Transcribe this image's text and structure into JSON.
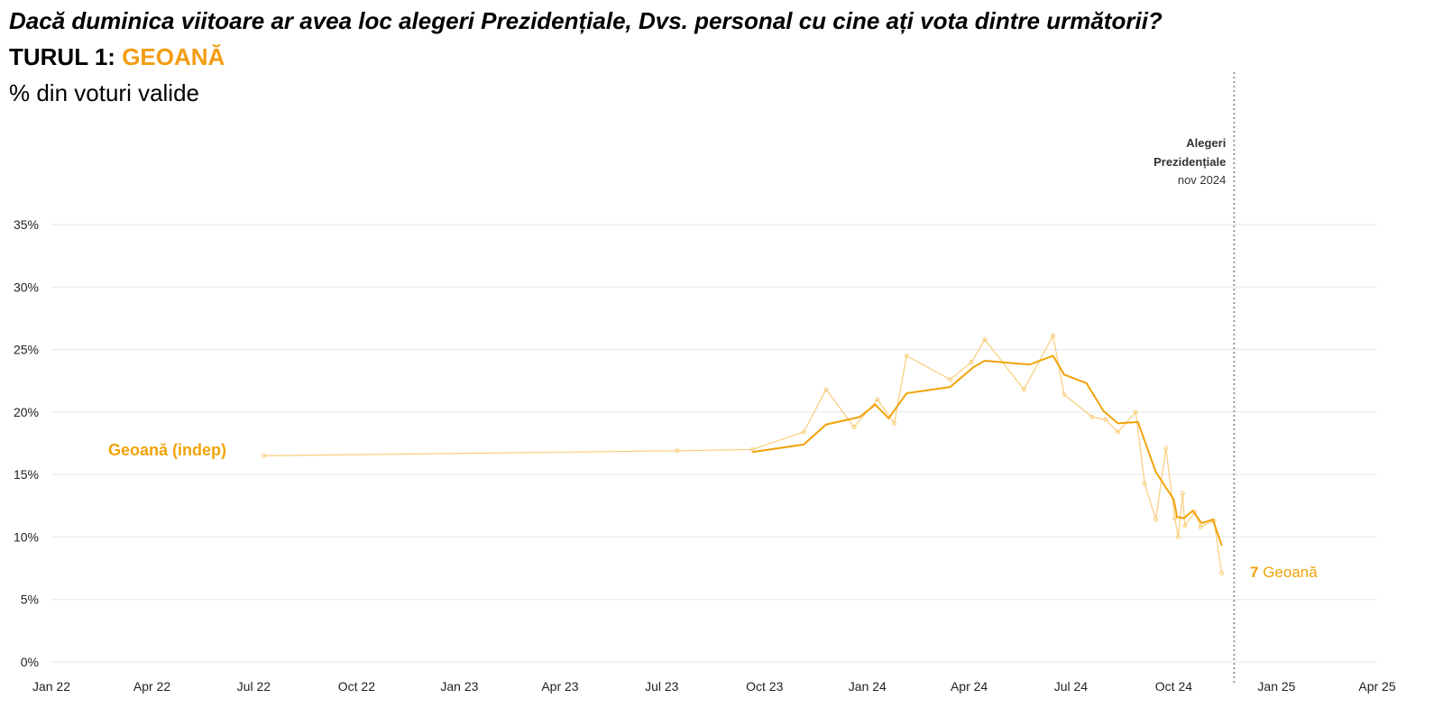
{
  "header": {
    "question": "Dacă duminica viitoare ar avea loc alegeri Prezidențiale, Dvs. personal cu cine ați vota dintre următorii?",
    "round_prefix": "TURUL 1:",
    "round_candidate": "GEOANĂ",
    "unit": "% din voturi valide"
  },
  "colors": {
    "series": "#f0a30a",
    "points": "#f8cd7a",
    "grid": "#e6e6e6",
    "event_line": "#999999"
  },
  "chart_data": {
    "type": "line",
    "title": "Dacă duminica viitoare ar avea loc alegeri Prezidențiale, Dvs. personal cu cine ați vota dintre următorii?",
    "ylabel": "% din voturi valide",
    "ylim": [
      0,
      35
    ],
    "yticks": [
      0,
      5,
      10,
      15,
      20,
      25,
      30,
      35
    ],
    "ytick_labels": [
      "0%",
      "5%",
      "10%",
      "15%",
      "20%",
      "25%",
      "30%",
      "35%"
    ],
    "xlim": [
      "2022-01-01",
      "2025-04-01"
    ],
    "xticks": [
      "2022-01-01",
      "2022-04-01",
      "2022-07-01",
      "2022-10-01",
      "2023-01-01",
      "2023-04-01",
      "2023-07-01",
      "2023-10-01",
      "2024-01-01",
      "2024-04-01",
      "2024-07-01",
      "2024-10-01",
      "2025-01-01",
      "2025-04-01"
    ],
    "xtick_labels": [
      "Jan 22",
      "Apr 22",
      "Jul 22",
      "Oct 22",
      "Jan 23",
      "Apr 23",
      "Jul 23",
      "Oct 23",
      "Jan 24",
      "Apr 24",
      "Jul 24",
      "Oct 24",
      "Jan 25",
      "Apr 25"
    ],
    "grid": true,
    "series_label": "Geoană (indep)",
    "end_label_number": "7",
    "end_label_name": "Geoană",
    "event": {
      "date": "2024-11-24",
      "label_line1": "Alegeri",
      "label_line2": "Prezidențiale",
      "label_line3": "nov 2024"
    },
    "series": [
      {
        "name": "Geoană (indep)",
        "kind": "polls",
        "points": [
          {
            "x": "2022-07-10",
            "y": 16.5
          },
          {
            "x": "2023-07-15",
            "y": 16.9
          },
          {
            "x": "2023-09-20",
            "y": 17.0
          },
          {
            "x": "2023-11-05",
            "y": 18.4
          },
          {
            "x": "2023-11-25",
            "y": 21.8
          },
          {
            "x": "2023-12-20",
            "y": 18.8
          },
          {
            "x": "2024-01-10",
            "y": 21.0
          },
          {
            "x": "2024-01-25",
            "y": 19.1
          },
          {
            "x": "2024-02-05",
            "y": 24.5
          },
          {
            "x": "2024-03-15",
            "y": 22.6
          },
          {
            "x": "2024-04-03",
            "y": 24.0
          },
          {
            "x": "2024-04-15",
            "y": 25.8
          },
          {
            "x": "2024-05-20",
            "y": 21.8
          },
          {
            "x": "2024-06-15",
            "y": 26.1
          },
          {
            "x": "2024-06-25",
            "y": 21.4
          },
          {
            "x": "2024-07-20",
            "y": 19.6
          },
          {
            "x": "2024-08-01",
            "y": 19.4
          },
          {
            "x": "2024-08-12",
            "y": 18.4
          },
          {
            "x": "2024-08-28",
            "y": 20.0
          },
          {
            "x": "2024-09-05",
            "y": 14.3
          },
          {
            "x": "2024-09-15",
            "y": 11.4
          },
          {
            "x": "2024-09-24",
            "y": 17.1
          },
          {
            "x": "2024-10-02",
            "y": 11.5
          },
          {
            "x": "2024-10-05",
            "y": 10.0
          },
          {
            "x": "2024-10-09",
            "y": 13.5
          },
          {
            "x": "2024-10-11",
            "y": 10.9
          },
          {
            "x": "2024-10-20",
            "y": 12.0
          },
          {
            "x": "2024-10-25",
            "y": 10.8
          },
          {
            "x": "2024-11-06",
            "y": 11.3
          },
          {
            "x": "2024-11-13",
            "y": 7.1
          }
        ]
      },
      {
        "name": "Geoană (indep)",
        "kind": "trend",
        "points": [
          {
            "x": "2023-09-20",
            "y": 16.8
          },
          {
            "x": "2023-11-05",
            "y": 17.4
          },
          {
            "x": "2023-11-25",
            "y": 19.0
          },
          {
            "x": "2023-12-25",
            "y": 19.6
          },
          {
            "x": "2024-01-08",
            "y": 20.6
          },
          {
            "x": "2024-01-20",
            "y": 19.5
          },
          {
            "x": "2024-02-05",
            "y": 21.5
          },
          {
            "x": "2024-03-15",
            "y": 22.0
          },
          {
            "x": "2024-04-05",
            "y": 23.6
          },
          {
            "x": "2024-04-15",
            "y": 24.1
          },
          {
            "x": "2024-05-25",
            "y": 23.8
          },
          {
            "x": "2024-06-15",
            "y": 24.5
          },
          {
            "x": "2024-06-25",
            "y": 23.0
          },
          {
            "x": "2024-07-15",
            "y": 22.3
          },
          {
            "x": "2024-07-30",
            "y": 20.1
          },
          {
            "x": "2024-08-12",
            "y": 19.1
          },
          {
            "x": "2024-08-30",
            "y": 19.2
          },
          {
            "x": "2024-09-15",
            "y": 15.2
          },
          {
            "x": "2024-10-01",
            "y": 13.0
          },
          {
            "x": "2024-10-04",
            "y": 11.6
          },
          {
            "x": "2024-10-10",
            "y": 11.5
          },
          {
            "x": "2024-10-18",
            "y": 12.1
          },
          {
            "x": "2024-10-26",
            "y": 11.1
          },
          {
            "x": "2024-11-05",
            "y": 11.4
          },
          {
            "x": "2024-11-13",
            "y": 9.3
          }
        ]
      }
    ]
  }
}
